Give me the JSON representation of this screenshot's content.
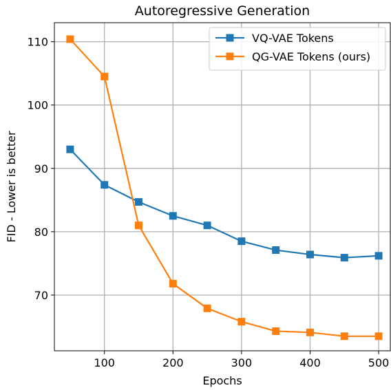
{
  "chart_data": {
    "type": "line",
    "title": "Autoregressive Generation",
    "xlabel": "Epochs",
    "ylabel": "FID - Lower is better",
    "xlim": [
      27,
      517
    ],
    "ylim": [
      61.2,
      113
    ],
    "xticks": [
      100,
      200,
      300,
      400,
      500
    ],
    "yticks": [
      70,
      80,
      90,
      100,
      110
    ],
    "grid": true,
    "legend_position": "top-right",
    "x": [
      50,
      100,
      150,
      200,
      250,
      300,
      350,
      400,
      450,
      500
    ],
    "series": [
      {
        "name": "VQ-VAE Tokens",
        "color": "#1f77b4",
        "marker": "square",
        "values": [
          93.0,
          87.4,
          84.7,
          82.5,
          81.0,
          78.5,
          77.1,
          76.4,
          75.9,
          76.2
        ]
      },
      {
        "name": "QG-VAE Tokens (ours)",
        "color": "#ff7f0e",
        "marker": "square",
        "values": [
          110.4,
          104.5,
          81.0,
          71.8,
          67.9,
          65.8,
          64.3,
          64.1,
          63.5,
          63.5
        ]
      }
    ]
  }
}
